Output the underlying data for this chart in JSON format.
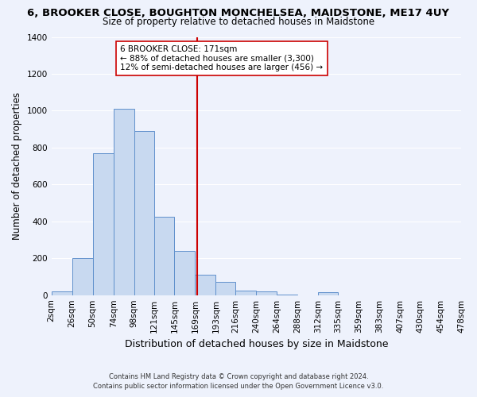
{
  "title": "6, BROOKER CLOSE, BOUGHTON MONCHELSEA, MAIDSTONE, ME17 4UY",
  "subtitle": "Size of property relative to detached houses in Maidstone",
  "xlabel": "Distribution of detached houses by size in Maidstone",
  "ylabel": "Number of detached properties",
  "bin_labels": [
    "2sqm",
    "26sqm",
    "50sqm",
    "74sqm",
    "98sqm",
    "121sqm",
    "145sqm",
    "169sqm",
    "193sqm",
    "216sqm",
    "240sqm",
    "264sqm",
    "288sqm",
    "312sqm",
    "335sqm",
    "359sqm",
    "383sqm",
    "407sqm",
    "430sqm",
    "454sqm",
    "478sqm"
  ],
  "bar_values": [
    20,
    200,
    770,
    1010,
    890,
    425,
    240,
    110,
    70,
    25,
    20,
    5,
    0,
    15,
    0,
    0,
    0,
    0,
    0,
    0
  ],
  "bin_edges": [
    2,
    26,
    50,
    74,
    98,
    121,
    145,
    169,
    193,
    216,
    240,
    264,
    288,
    312,
    335,
    359,
    383,
    407,
    430,
    454,
    478
  ],
  "property_value": 171,
  "bar_color": "#c8d9f0",
  "bar_edge_color": "#6090cc",
  "vline_color": "#cc0000",
  "background_color": "#eef2fc",
  "annotation_line1": "6 BROOKER CLOSE: 171sqm",
  "annotation_line2": "← 88% of detached houses are smaller (3,300)",
  "annotation_line3": "12% of semi-detached houses are larger (456) →",
  "footer_line1": "Contains HM Land Registry data © Crown copyright and database right 2024.",
  "footer_line2": "Contains public sector information licensed under the Open Government Licence v3.0.",
  "ylim": [
    0,
    1400
  ],
  "yticks": [
    0,
    200,
    400,
    600,
    800,
    1000,
    1200,
    1400
  ],
  "title_fontsize": 9.5,
  "subtitle_fontsize": 8.5,
  "ylabel_fontsize": 8.5,
  "xlabel_fontsize": 9,
  "tick_fontsize": 7.5,
  "annot_fontsize": 7.5,
  "footer_fontsize": 6.0
}
